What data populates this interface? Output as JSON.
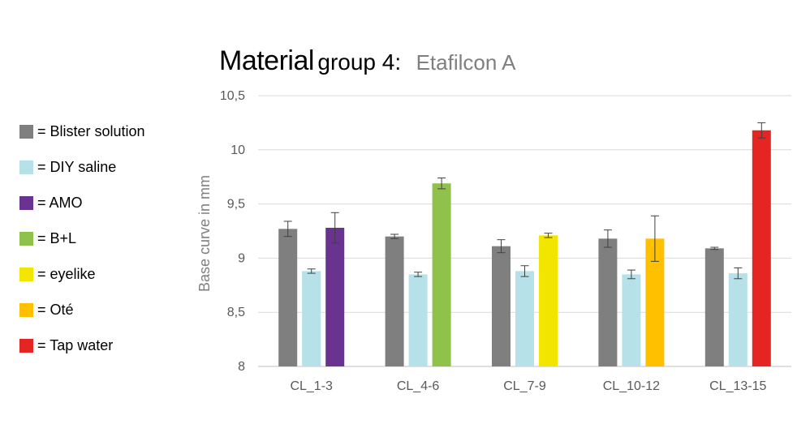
{
  "title": {
    "main": "Material",
    "group": "group 4:",
    "subtitle": "Etafilcon A"
  },
  "legend": [
    {
      "label": "= Blister solution",
      "color": "#7f7f7f"
    },
    {
      "label": "= DIY saline",
      "color": "#b7e1e8"
    },
    {
      "label": "= AMO",
      "color": "#6a3390"
    },
    {
      "label": "= B+L",
      "color": "#8fc14b"
    },
    {
      "label": "= eyelike",
      "color": "#f2e600"
    },
    {
      "label": "= Oté",
      "color": "#ffc000"
    },
    {
      "label": "= Tap water",
      "color": "#e42522"
    }
  ],
  "chart_data": {
    "type": "bar",
    "title": "Material group 4:",
    "subtitle": "Etafilcon A",
    "xlabel": "",
    "ylabel": "Base curve in mm",
    "ylim": [
      8,
      10.5
    ],
    "yticks": [
      "8",
      "8,5",
      "9",
      "9,5",
      "10",
      "10,5"
    ],
    "grid": true,
    "legend_position": "left",
    "categories": [
      "CL_1-3",
      "CL_4-6",
      "CL_7-9",
      "CL_10-12",
      "CL_13-15"
    ],
    "groups": [
      {
        "category": "CL_1-3",
        "bars": [
          {
            "series": "Blister solution",
            "value": 9.27,
            "error": 0.07,
            "color": "#7f7f7f"
          },
          {
            "series": "DIY saline",
            "value": 8.88,
            "error": 0.02,
            "color": "#b7e1e8"
          },
          {
            "series": "AMO",
            "value": 9.28,
            "error": 0.14,
            "color": "#6a3390"
          }
        ]
      },
      {
        "category": "CL_4-6",
        "bars": [
          {
            "series": "Blister solution",
            "value": 9.2,
            "error": 0.02,
            "color": "#7f7f7f"
          },
          {
            "series": "DIY saline",
            "value": 8.85,
            "error": 0.02,
            "color": "#b7e1e8"
          },
          {
            "series": "B+L",
            "value": 9.69,
            "error": 0.05,
            "color": "#8fc14b"
          }
        ]
      },
      {
        "category": "CL_7-9",
        "bars": [
          {
            "series": "Blister solution",
            "value": 9.11,
            "error": 0.06,
            "color": "#7f7f7f"
          },
          {
            "series": "DIY saline",
            "value": 8.88,
            "error": 0.05,
            "color": "#b7e1e8"
          },
          {
            "series": "eyelike",
            "value": 9.21,
            "error": 0.02,
            "color": "#f2e600"
          }
        ]
      },
      {
        "category": "CL_10-12",
        "bars": [
          {
            "series": "Blister solution",
            "value": 9.18,
            "error": 0.08,
            "color": "#7f7f7f"
          },
          {
            "series": "DIY saline",
            "value": 8.85,
            "error": 0.04,
            "color": "#b7e1e8"
          },
          {
            "series": "Oté",
            "value": 9.18,
            "error": 0.21,
            "color": "#ffc000"
          }
        ]
      },
      {
        "category": "CL_13-15",
        "bars": [
          {
            "series": "Blister solution",
            "value": 9.09,
            "error": 0.01,
            "color": "#7f7f7f"
          },
          {
            "series": "DIY saline",
            "value": 8.86,
            "error": 0.05,
            "color": "#b7e1e8"
          },
          {
            "series": "Tap water",
            "value": 10.18,
            "error": 0.07,
            "color": "#e42522"
          }
        ]
      }
    ]
  }
}
